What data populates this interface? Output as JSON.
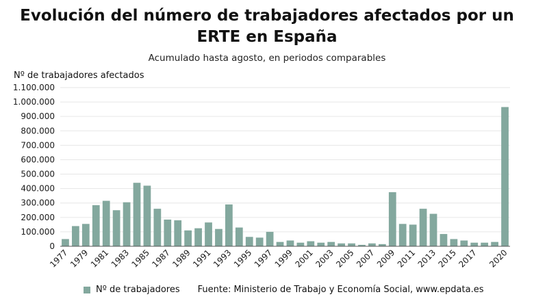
{
  "header": {
    "title": "Evolución del número de trabajadores afectados por un ERTE en España",
    "subtitle": "Acumulado hasta agosto, en periodos comparables"
  },
  "footer": {
    "source": "Fuente: Ministerio de Trabajo y Economía Social, www.epdata.es"
  },
  "colors": {
    "bar": "#83a89e",
    "grid": "#e6e6e6",
    "axis": "#555555"
  },
  "chart_data": {
    "type": "bar",
    "title": "Evolución del número de trabajadores afectados por un ERTE en España",
    "subtitle": "Acumulado hasta agosto, en periodos comparables",
    "ylabel": "Nº de trabajadores afectados",
    "xlabel": "",
    "ylim": [
      0,
      1100000
    ],
    "yticks": [
      0,
      100000,
      200000,
      300000,
      400000,
      500000,
      600000,
      700000,
      800000,
      900000,
      1000000,
      1100000
    ],
    "ytick_labels": [
      "0",
      "100.000",
      "200.000",
      "300.000",
      "400.000",
      "500.000",
      "600.000",
      "700.000",
      "800.000",
      "900.000",
      "1.000.000",
      "1.100.000"
    ],
    "grid": true,
    "legend_position": "bottom-left",
    "categories": [
      "1977",
      "1978",
      "1979",
      "1980",
      "1981",
      "1982",
      "1983",
      "1984",
      "1985",
      "1986",
      "1987",
      "1988",
      "1989",
      "1990",
      "1991",
      "1992",
      "1993",
      "1994",
      "1995",
      "1996",
      "1997",
      "1998",
      "1999",
      "2000",
      "2001",
      "2002",
      "2003",
      "2004",
      "2005",
      "2006",
      "2007",
      "2008",
      "2009",
      "2010",
      "2011",
      "2012",
      "2013",
      "2014",
      "2015",
      "2016",
      "2017",
      "2018",
      "2019",
      "2020"
    ],
    "xtick_labels": [
      "1977",
      "",
      "1979",
      "",
      "1981",
      "",
      "1983",
      "",
      "1985",
      "",
      "1987",
      "",
      "1989",
      "",
      "1991",
      "",
      "1993",
      "",
      "1995",
      "",
      "1997",
      "",
      "1999",
      "",
      "2001",
      "",
      "2003",
      "",
      "2005",
      "",
      "2007",
      "",
      "2009",
      "",
      "2011",
      "",
      "2013",
      "",
      "2015",
      "",
      "2017",
      "",
      "",
      "2020"
    ],
    "series": [
      {
        "name": "Nº de trabajadores",
        "values": [
          50000,
          140000,
          155000,
          285000,
          315000,
          250000,
          305000,
          440000,
          420000,
          260000,
          185000,
          180000,
          110000,
          125000,
          165000,
          120000,
          290000,
          130000,
          65000,
          60000,
          100000,
          30000,
          40000,
          25000,
          35000,
          25000,
          30000,
          20000,
          20000,
          10000,
          20000,
          15000,
          375000,
          155000,
          150000,
          260000,
          225000,
          85000,
          50000,
          40000,
          25000,
          25000,
          30000,
          965000
        ]
      }
    ]
  }
}
